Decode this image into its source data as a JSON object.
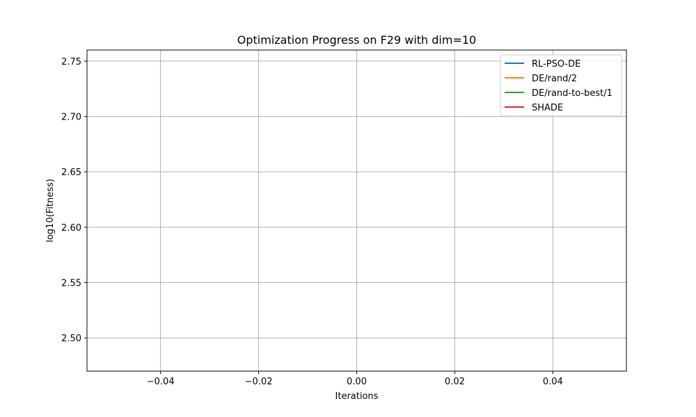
{
  "chart_data": {
    "type": "line",
    "title": "Optimization Progress on F29 with dim=10",
    "xlabel": "Iterations",
    "ylabel": "log10(Fitness)",
    "xlim": [
      -0.055,
      0.055
    ],
    "ylim": [
      2.47,
      2.76
    ],
    "xticks": [
      -0.04,
      -0.02,
      0.0,
      0.02,
      0.04
    ],
    "xtick_labels": [
      "−0.04",
      "−0.02",
      "0.00",
      "0.02",
      "0.04"
    ],
    "yticks": [
      2.5,
      2.55,
      2.6,
      2.65,
      2.7,
      2.75
    ],
    "ytick_labels": [
      "2.50",
      "2.55",
      "2.60",
      "2.65",
      "2.70",
      "2.75"
    ],
    "grid": true,
    "legend_position": "top-right",
    "series": [
      {
        "name": "RL-PSO-DE",
        "color": "#1f77b4",
        "x": [],
        "y": []
      },
      {
        "name": "DE/rand/2",
        "color": "#ff7f0e",
        "x": [],
        "y": []
      },
      {
        "name": "DE/rand-to-best/1",
        "color": "#2ca02c",
        "x": [],
        "y": []
      },
      {
        "name": "SHADE",
        "color": "#d62728",
        "x": [],
        "y": []
      }
    ]
  }
}
